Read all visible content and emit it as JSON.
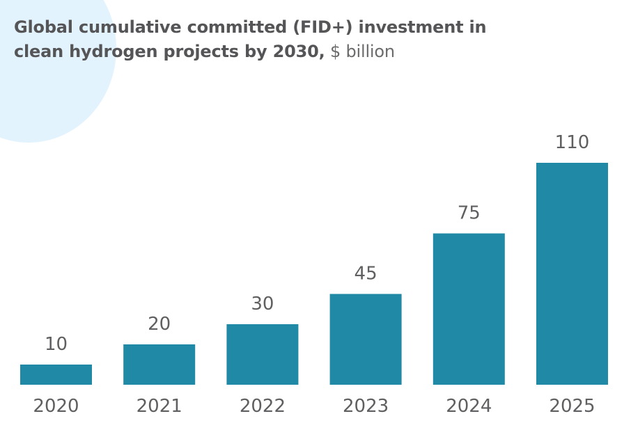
{
  "title": {
    "bold": "Global cumulative committed (FID+) investment in clean hydrogen projects by 2030,",
    "unit": "$ billion"
  },
  "colors": {
    "bar": "#1f89a6",
    "background_circle": "#e3f3fe"
  },
  "chart_data": {
    "type": "bar",
    "title": "Global cumulative committed (FID+) investment in clean hydrogen projects by 2030, $ billion",
    "xlabel": "",
    "ylabel": "",
    "categories": [
      "2020",
      "2021",
      "2022",
      "2023",
      "2024",
      "2025"
    ],
    "values": [
      10,
      20,
      30,
      45,
      75,
      110
    ],
    "data_labels": [
      "10",
      "20",
      "30",
      "45",
      "75",
      "110"
    ],
    "ylim": [
      0,
      110
    ],
    "grid": false,
    "legend": "none",
    "y_axis_visible": false
  }
}
